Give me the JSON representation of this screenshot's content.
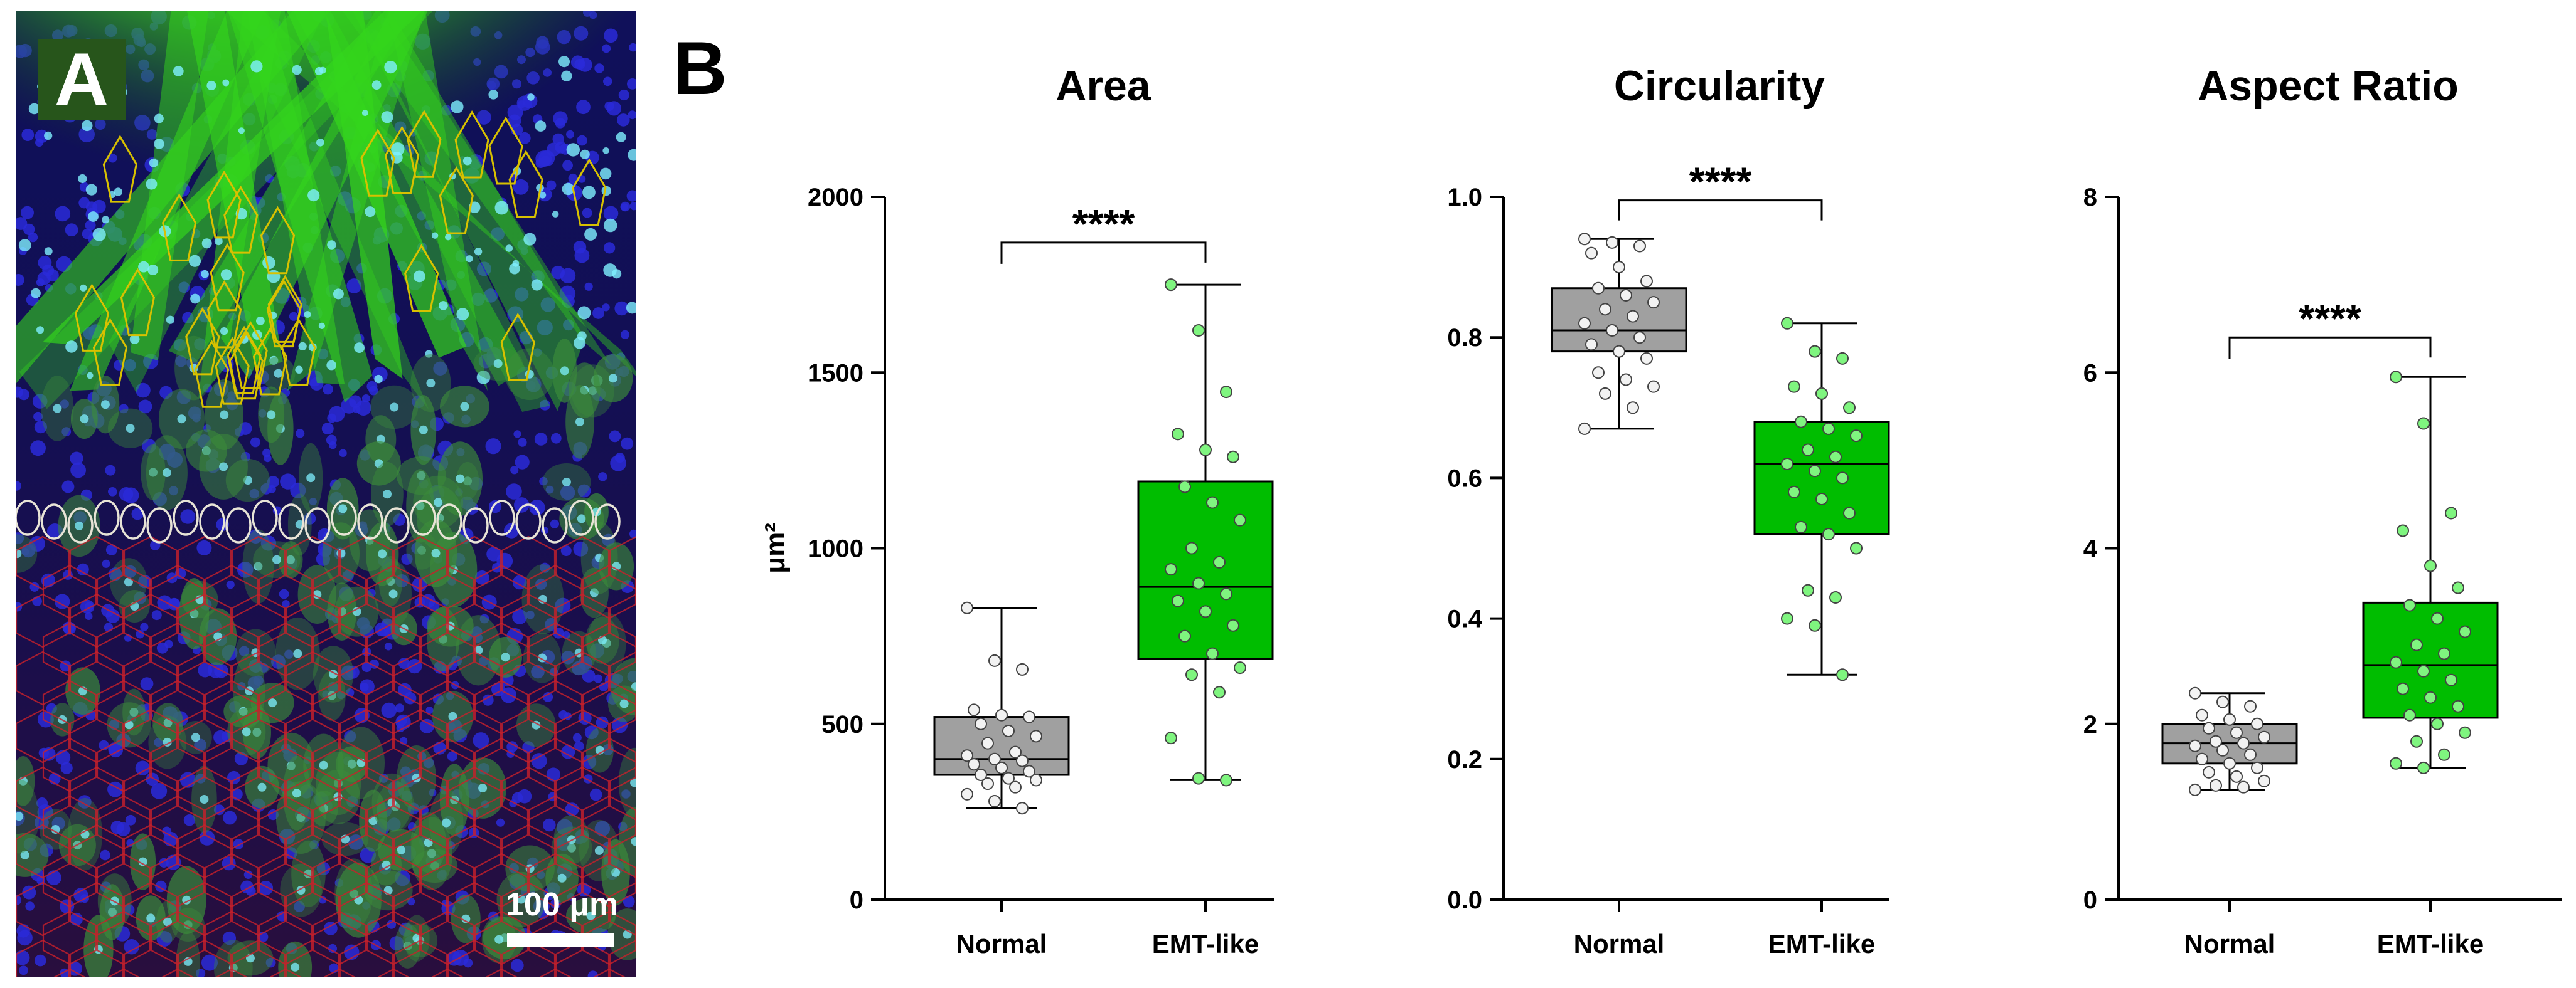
{
  "panel_a": {
    "label": "A",
    "scale_bar_label": "100 μm",
    "colors": {
      "background": "#0c0c4a",
      "nuclei": "#2a2ad8",
      "cytoplasm": "#34d61c",
      "cyan": "#7ff0ff",
      "outline_emt": "#d8c100",
      "outline_normal": "#e8e4d6",
      "outline_membrane": "#c8202a"
    }
  },
  "panel_b": {
    "label": "B"
  },
  "colors": {
    "normal_box": "#a0a0a0",
    "emt_box": "#00bd00",
    "normal_point": "#f2f2f2",
    "emt_point": "#7ff57f"
  },
  "chart_data": [
    {
      "type": "box",
      "title": "Area",
      "ylabel": "μm²",
      "ylim": [
        0,
        2000
      ],
      "yticks": [
        0,
        500,
        1000,
        1500,
        2000
      ],
      "ytick_labels": [
        "0",
        "500",
        "1000",
        "1500",
        "2000"
      ],
      "categories": [
        "Normal",
        "EMT-like"
      ],
      "significance": {
        "label": "****",
        "between": [
          "Normal",
          "EMT-like"
        ],
        "bracket_y": 1870
      },
      "series": [
        {
          "name": "Normal",
          "min": 260,
          "q1": 355,
          "median": 400,
          "q3": 520,
          "max": 830,
          "points": [
            830,
            680,
            655,
            540,
            525,
            520,
            500,
            480,
            465,
            445,
            420,
            410,
            400,
            395,
            385,
            375,
            365,
            355,
            345,
            340,
            330,
            320,
            300,
            280,
            260
          ]
        },
        {
          "name": "EMT-like",
          "min": 340,
          "q1": 685,
          "median": 890,
          "q3": 1190,
          "max": 1750,
          "points": [
            1750,
            1620,
            1445,
            1325,
            1280,
            1260,
            1175,
            1130,
            1080,
            1000,
            960,
            940,
            900,
            870,
            850,
            820,
            780,
            750,
            700,
            660,
            640,
            590,
            460,
            345,
            340
          ]
        }
      ]
    },
    {
      "type": "box",
      "title": "Circularity",
      "ylabel": "",
      "ylim": [
        0,
        1.0
      ],
      "yticks": [
        0,
        0.2,
        0.4,
        0.6,
        0.8,
        1.0
      ],
      "ytick_labels": [
        "0.0",
        "0.2",
        "0.4",
        "0.6",
        "0.8",
        "1.0"
      ],
      "categories": [
        "Normal",
        "EMT-like"
      ],
      "significance": {
        "label": "****",
        "between": [
          "Normal",
          "EMT-like"
        ],
        "bracket_y": 0.995
      },
      "series": [
        {
          "name": "Normal",
          "min": 0.67,
          "q1": 0.78,
          "median": 0.81,
          "q3": 0.87,
          "max": 0.94,
          "points": [
            0.94,
            0.935,
            0.93,
            0.92,
            0.9,
            0.88,
            0.87,
            0.86,
            0.85,
            0.84,
            0.83,
            0.82,
            0.81,
            0.8,
            0.79,
            0.78,
            0.77,
            0.75,
            0.74,
            0.73,
            0.72,
            0.7,
            0.67
          ]
        },
        {
          "name": "EMT-like",
          "min": 0.32,
          "q1": 0.52,
          "median": 0.62,
          "q3": 0.68,
          "max": 0.82,
          "points": [
            0.82,
            0.78,
            0.77,
            0.73,
            0.72,
            0.7,
            0.68,
            0.67,
            0.66,
            0.64,
            0.63,
            0.62,
            0.61,
            0.6,
            0.58,
            0.57,
            0.55,
            0.53,
            0.52,
            0.5,
            0.44,
            0.43,
            0.4,
            0.39,
            0.32
          ]
        }
      ]
    },
    {
      "type": "box",
      "title": "Aspect Ratio",
      "ylabel": "",
      "ylim": [
        0,
        8
      ],
      "yticks": [
        0,
        2,
        4,
        6,
        8
      ],
      "ytick_labels": [
        "0",
        "2",
        "4",
        "6",
        "8"
      ],
      "categories": [
        "Normal",
        "EMT-like"
      ],
      "significance": {
        "label": "****",
        "between": [
          "Normal",
          "EMT-like"
        ],
        "bracket_y": 6.4
      },
      "series": [
        {
          "name": "Normal",
          "min": 1.25,
          "q1": 1.55,
          "median": 1.78,
          "q3": 2.0,
          "max": 2.35,
          "points": [
            2.35,
            2.25,
            2.2,
            2.1,
            2.05,
            2.0,
            1.95,
            1.9,
            1.85,
            1.8,
            1.78,
            1.75,
            1.7,
            1.65,
            1.6,
            1.55,
            1.5,
            1.45,
            1.4,
            1.35,
            1.3,
            1.28,
            1.25
          ]
        },
        {
          "name": "EMT-like",
          "min": 1.5,
          "q1": 2.07,
          "median": 2.67,
          "q3": 3.38,
          "max": 5.95,
          "points": [
            5.95,
            5.42,
            4.4,
            4.2,
            3.8,
            3.55,
            3.35,
            3.2,
            3.05,
            2.9,
            2.8,
            2.7,
            2.6,
            2.5,
            2.4,
            2.3,
            2.2,
            2.1,
            2.0,
            1.9,
            1.8,
            1.65,
            1.55,
            1.5
          ]
        }
      ]
    }
  ]
}
